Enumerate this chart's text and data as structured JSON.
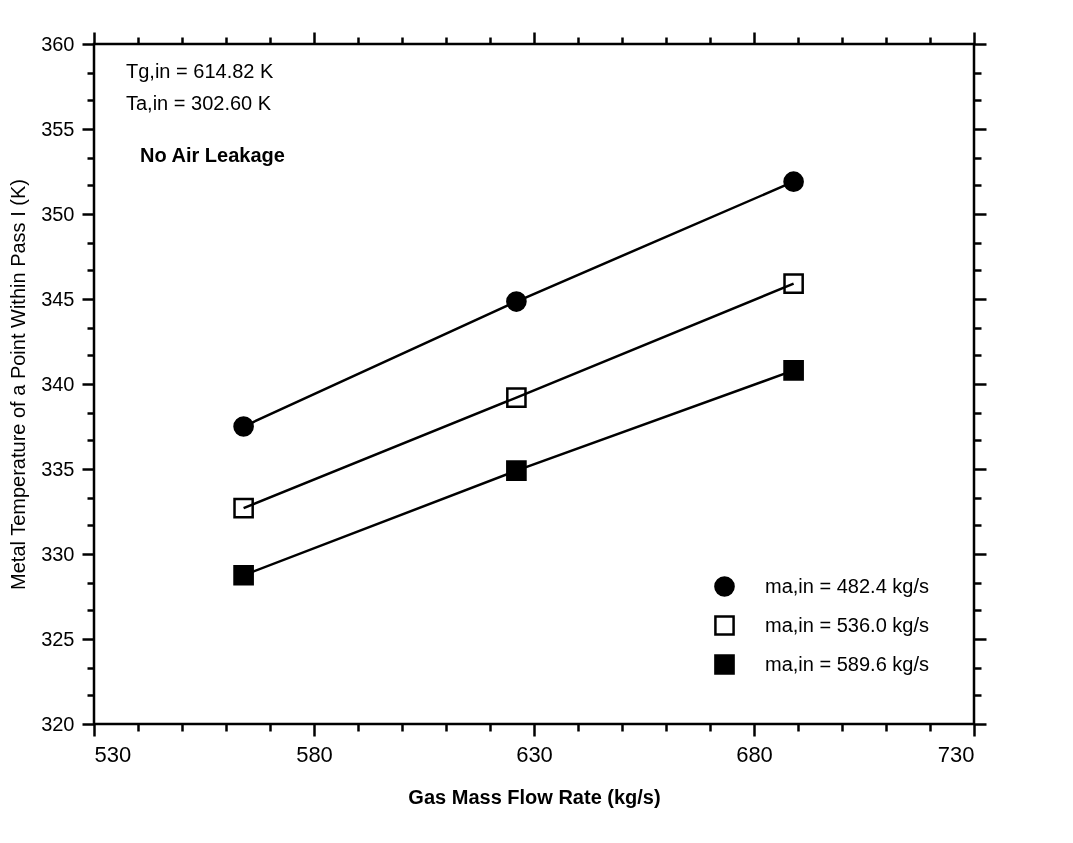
{
  "chart_data": {
    "type": "line",
    "xlabel": "Gas Mass Flow Rate (kg/s)",
    "ylabel": "Metal Temperature of a Point Within Pass I (K)",
    "annotations": [
      "Tg,in = 614.82 K",
      "Ta,in = 302.60 K",
      "No Air Leakage"
    ],
    "x": [
      564,
      626,
      689
    ],
    "series": [
      {
        "name": "ma,in = 482.4 kg/s",
        "color": "#000000",
        "marker": "circle",
        "values": [
          337.5,
          344.85,
          351.9
        ]
      },
      {
        "name": "ma,in = 536.0 kg/s",
        "color": "#000000",
        "marker": "square-open",
        "values": [
          332.7,
          339.2,
          345.9
        ]
      },
      {
        "name": "ma,in = 589.6 kg/s",
        "color": "#000000",
        "marker": "square",
        "values": [
          328.75,
          334.9,
          340.8
        ]
      }
    ],
    "xlim": [
      530,
      730
    ],
    "xticks": [
      530,
      {
        "value": 540,
        "label": null
      },
      {
        "value": 550,
        "label": null
      },
      {
        "value": 560,
        "label": null
      },
      {
        "value": 570,
        "label": null
      },
      580,
      {
        "value": 590,
        "label": null
      },
      {
        "value": 600,
        "label": null
      },
      {
        "value": 610,
        "label": null
      },
      {
        "value": 620,
        "label": null
      },
      630,
      {
        "value": 640,
        "label": null
      },
      {
        "value": 650,
        "label": null
      },
      {
        "value": 660,
        "label": null
      },
      {
        "value": 670,
        "label": null
      },
      680,
      {
        "value": 690,
        "label": null
      },
      {
        "value": 700,
        "label": null
      },
      {
        "value": 710,
        "label": null
      },
      {
        "value": 720,
        "label": null
      },
      730
    ],
    "ylim": [
      320,
      360
    ],
    "yticks": [
      320,
      {
        "value": 321.7,
        "label": null
      },
      {
        "value": 323.3,
        "label": null
      },
      325,
      {
        "value": 326.7,
        "label": null
      },
      {
        "value": 328.3,
        "label": null
      },
      330,
      {
        "value": 331.7,
        "label": null
      },
      {
        "value": 333.3,
        "label": null
      },
      335,
      {
        "value": 336.7,
        "label": null
      },
      {
        "value": 338.3,
        "label": null
      },
      340,
      {
        "value": 341.7,
        "label": null
      },
      {
        "value": 343.3,
        "label": null
      },
      345,
      {
        "value": 346.7,
        "label": null
      },
      {
        "value": 348.3,
        "label": null
      },
      350,
      {
        "value": 351.7,
        "label": null
      },
      {
        "value": 353.3,
        "label": null
      },
      355,
      {
        "value": 356.7,
        "label": null
      },
      {
        "value": 358.3,
        "label": null
      },
      360
    ],
    "grid": false,
    "legend": "bottom right",
    "line_style": "solid"
  }
}
